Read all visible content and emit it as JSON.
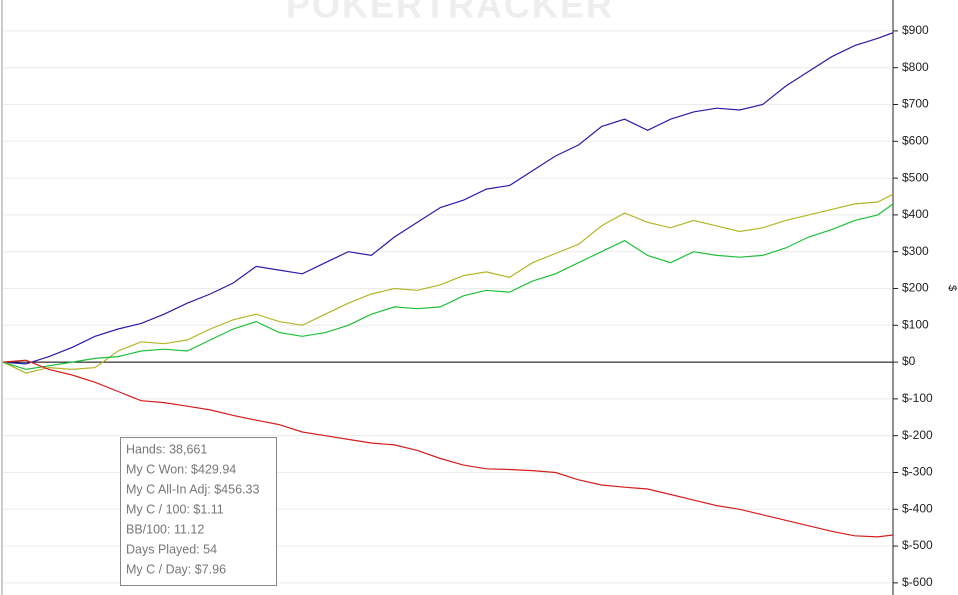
{
  "chart_data": {
    "type": "line",
    "watermark": "POKERTRACKER",
    "y_label": "$",
    "x": [
      0,
      1000,
      2000,
      3000,
      4000,
      5000,
      6000,
      7000,
      8000,
      9000,
      10000,
      11000,
      12000,
      13000,
      14000,
      15000,
      16000,
      17000,
      18000,
      19000,
      20000,
      21000,
      22000,
      23000,
      24000,
      25000,
      26000,
      27000,
      28000,
      29000,
      30000,
      31000,
      32000,
      33000,
      34000,
      35000,
      36000,
      37000,
      38000,
      38661
    ],
    "xlim": [
      0,
      38661
    ],
    "series": [
      {
        "color": "#2f1aa6",
        "values": [
          0,
          -5,
          15,
          40,
          70,
          90,
          105,
          130,
          160,
          185,
          215,
          260,
          250,
          240,
          270,
          300,
          290,
          340,
          380,
          420,
          440,
          470,
          480,
          520,
          560,
          590,
          640,
          660,
          630,
          660,
          680,
          690,
          685,
          700,
          750,
          790,
          830,
          860,
          880,
          895
        ]
      },
      {
        "color": "#b5b52a",
        "values": [
          0,
          -30,
          -15,
          -20,
          -15,
          30,
          55,
          50,
          60,
          90,
          115,
          130,
          110,
          100,
          130,
          160,
          185,
          200,
          195,
          210,
          235,
          245,
          230,
          270,
          295,
          320,
          370,
          405,
          380,
          365,
          385,
          370,
          355,
          365,
          385,
          400,
          415,
          430,
          435,
          456
        ]
      },
      {
        "color": "#1fbf3a",
        "values": [
          0,
          -20,
          -10,
          0,
          10,
          15,
          30,
          35,
          30,
          60,
          90,
          110,
          80,
          70,
          80,
          100,
          130,
          150,
          145,
          150,
          180,
          195,
          190,
          220,
          240,
          270,
          300,
          330,
          290,
          270,
          300,
          290,
          285,
          290,
          310,
          340,
          360,
          385,
          400,
          430
        ]
      },
      {
        "color": "#d41f1f",
        "values": [
          0,
          5,
          -20,
          -35,
          -55,
          -80,
          -105,
          -110,
          -120,
          -130,
          -145,
          -158,
          -170,
          -190,
          -200,
          -210,
          -220,
          -225,
          -240,
          -262,
          -280,
          -290,
          -292,
          -295,
          -300,
          -320,
          -334,
          -340,
          -345,
          -360,
          -375,
          -390,
          -400,
          -415,
          -430,
          -445,
          -460,
          -472,
          -475,
          -470
        ]
      }
    ],
    "ylim": [
      -633,
      984
    ],
    "yticks": [
      {
        "value": -600,
        "label": "$-600"
      },
      {
        "value": -500,
        "label": "$-500"
      },
      {
        "value": -400,
        "label": "$-400"
      },
      {
        "value": -300,
        "label": "$-300"
      },
      {
        "value": -200,
        "label": "$-200"
      },
      {
        "value": -100,
        "label": "$-100"
      },
      {
        "value": 0,
        "label": "$0"
      },
      {
        "value": 100,
        "label": "$100"
      },
      {
        "value": 200,
        "label": "$200"
      },
      {
        "value": 300,
        "label": "$300"
      },
      {
        "value": 400,
        "label": "$400"
      },
      {
        "value": 500,
        "label": "$500"
      },
      {
        "value": 600,
        "label": "$600"
      },
      {
        "value": 700,
        "label": "$700"
      },
      {
        "value": 800,
        "label": "$800"
      },
      {
        "value": 900,
        "label": "$900"
      }
    ],
    "grid": true,
    "annotations": [
      "Hands: 38,661",
      "My C Won: $429.94",
      "My C All-In Adj: $456.33",
      "My C / 100: $1.11",
      "BB/100: 11.12",
      "Days Played: 54",
      "My C / Day: $7.96"
    ]
  }
}
